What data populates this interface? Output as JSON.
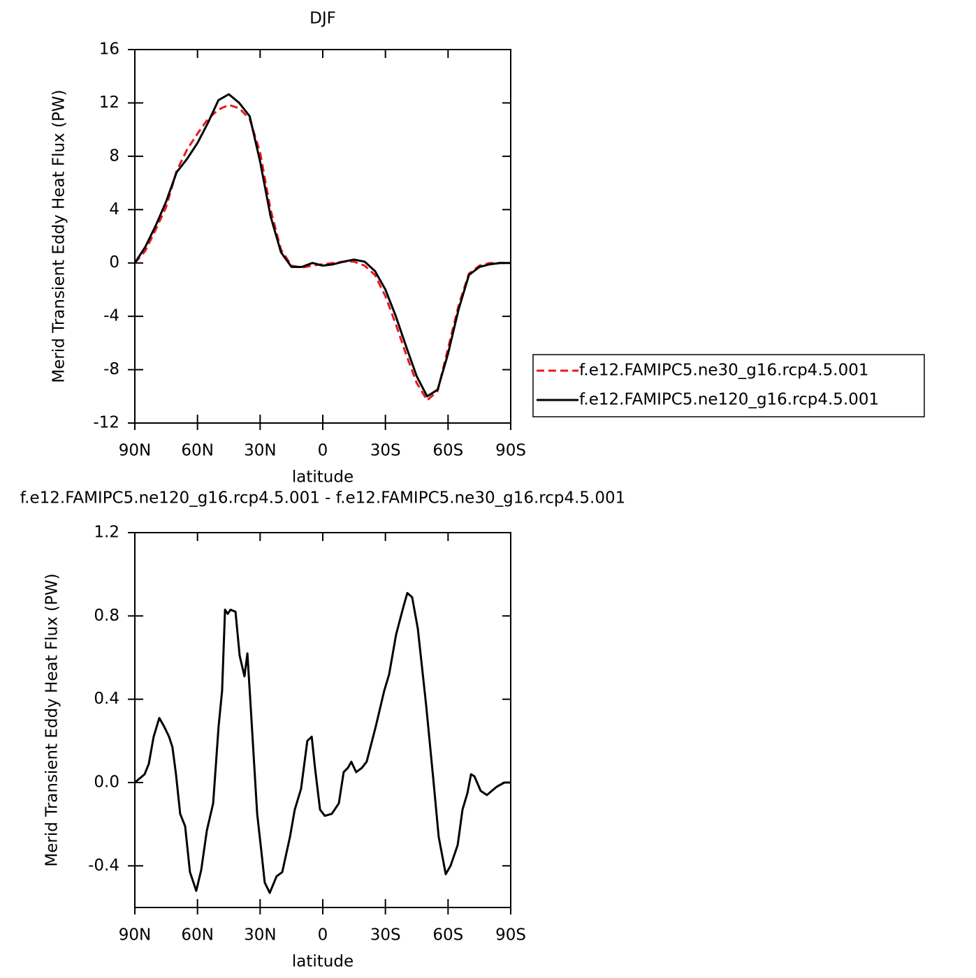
{
  "chart_data": [
    {
      "type": "line",
      "title": "DJF",
      "xlabel": "latitude",
      "ylabel": "Merid Transient Eddy Heat Flux (PW)",
      "xlim": [
        90,
        -90
      ],
      "ylim": [
        -12,
        16
      ],
      "xticks": [
        {
          "value": 90,
          "label": "90N"
        },
        {
          "value": 60,
          "label": "60N"
        },
        {
          "value": 30,
          "label": "30N"
        },
        0,
        {
          "value": -30,
          "label": "30S"
        },
        {
          "value": -60,
          "label": "60S"
        },
        {
          "value": -90,
          "label": "90S"
        }
      ],
      "yticks": [
        -12,
        -8,
        -4,
        0,
        4,
        8,
        12,
        16
      ],
      "legend": "right",
      "x": [
        90,
        85,
        80,
        75,
        70,
        65,
        60,
        55,
        50,
        45,
        40,
        35,
        30,
        25,
        20,
        15,
        10,
        5,
        0,
        -5,
        -10,
        -15,
        -20,
        -25,
        -30,
        -35,
        -40,
        -45,
        -50,
        -55,
        -60,
        -65,
        -70,
        -75,
        -80,
        -85,
        -90
      ],
      "series": [
        {
          "name": "f.e12.FAMIPC5.ne30_g16.rcp4.5.001",
          "color": "#e8191e",
          "dash": true,
          "values": [
            0,
            0.9,
            2.5,
            4.2,
            6.9,
            8.5,
            9.7,
            10.8,
            11.5,
            11.85,
            11.6,
            10.8,
            8.3,
            4.0,
            1.0,
            -0.2,
            -0.35,
            -0.2,
            -0.1,
            0.0,
            0.1,
            0.1,
            -0.2,
            -0.9,
            -2.5,
            -4.6,
            -6.9,
            -9.0,
            -10.3,
            -9.6,
            -6.4,
            -3.2,
            -0.8,
            -0.2,
            0,
            0,
            0
          ]
        },
        {
          "name": "f.e12.FAMIPC5.ne120_g16.rcp4.5.001",
          "color": "#000000",
          "dash": false,
          "values": [
            0,
            1.2,
            2.8,
            4.6,
            6.8,
            7.8,
            9.0,
            10.5,
            12.2,
            12.65,
            12.0,
            11.0,
            7.6,
            3.5,
            0.8,
            -0.3,
            -0.3,
            0.0,
            -0.2,
            -0.1,
            0.1,
            0.25,
            0.1,
            -0.6,
            -2.0,
            -4.0,
            -6.3,
            -8.5,
            -10.0,
            -9.5,
            -6.8,
            -3.5,
            -0.9,
            -0.3,
            -0.1,
            0,
            0
          ]
        }
      ]
    },
    {
      "type": "line",
      "title": "f.e12.FAMIPC5.ne120_g16.rcp4.5.001 - f.e12.FAMIPC5.ne30_g16.rcp4.5.001",
      "xlabel": "latitude",
      "ylabel": "Merid Transient Eddy Heat Flux (PW)",
      "xlim": [
        90,
        -90
      ],
      "ylim": [
        -0.6,
        1.2
      ],
      "xticks": [
        {
          "value": 90,
          "label": "90N"
        },
        {
          "value": 60,
          "label": "60N"
        },
        {
          "value": 30,
          "label": "30N"
        },
        0,
        {
          "value": -30,
          "label": "30S"
        },
        {
          "value": -60,
          "label": "60S"
        },
        {
          "value": -90,
          "label": "90S"
        }
      ],
      "yticks": [
        -0.4,
        {
          "value": 0,
          "label": "0.0"
        },
        0.4,
        0.8,
        1.2
      ],
      "x": [
        90,
        85.3,
        83.3,
        81,
        78.3,
        76,
        73.6,
        72,
        70.3,
        68.3,
        65.9,
        63.6,
        60.6,
        58.2,
        55.5,
        52.5,
        49.9,
        48.2,
        46.8,
        45.5,
        44.2,
        41.8,
        39.8,
        37.5,
        36.1,
        34.8,
        31.4,
        29.4,
        27.8,
        25.4,
        22.1,
        19.4,
        15.7,
        13.4,
        10.4,
        7.4,
        5.3,
        3.7,
        1.3,
        -1.0,
        -4.3,
        -7.7,
        -10,
        -12,
        -13.7,
        -16,
        -18.7,
        -21,
        -25.4,
        -29.4,
        -31.8,
        -35.1,
        -38.5,
        -40.5,
        -42.8,
        -45.5,
        -49.5,
        -52.9,
        -55.5,
        -58.9,
        -61.2,
        -64.6,
        -66.9,
        -69.3,
        -71,
        -72.6,
        -75.6,
        -78.6,
        -83.3,
        -87,
        -90
      ],
      "series": [
        {
          "color": "#000000",
          "dash": false,
          "values": [
            0,
            0.04,
            0.09,
            0.22,
            0.31,
            0.27,
            0.22,
            0.17,
            0.04,
            -0.15,
            -0.21,
            -0.43,
            -0.52,
            -0.42,
            -0.23,
            -0.1,
            0.27,
            0.44,
            0.83,
            0.81,
            0.83,
            0.82,
            0.61,
            0.51,
            0.62,
            0.41,
            -0.15,
            -0.33,
            -0.48,
            -0.53,
            -0.45,
            -0.43,
            -0.26,
            -0.13,
            -0.03,
            0.2,
            0.22,
            0.07,
            -0.13,
            -0.16,
            -0.15,
            -0.1,
            0.05,
            0.07,
            0.1,
            0.05,
            0.07,
            0.1,
            0.27,
            0.44,
            0.52,
            0.71,
            0.84,
            0.91,
            0.89,
            0.74,
            0.37,
            0.02,
            -0.26,
            -0.44,
            -0.4,
            -0.3,
            -0.13,
            -0.05,
            0.04,
            0.03,
            -0.04,
            -0.06,
            -0.02,
            0,
            0
          ]
        }
      ]
    }
  ]
}
